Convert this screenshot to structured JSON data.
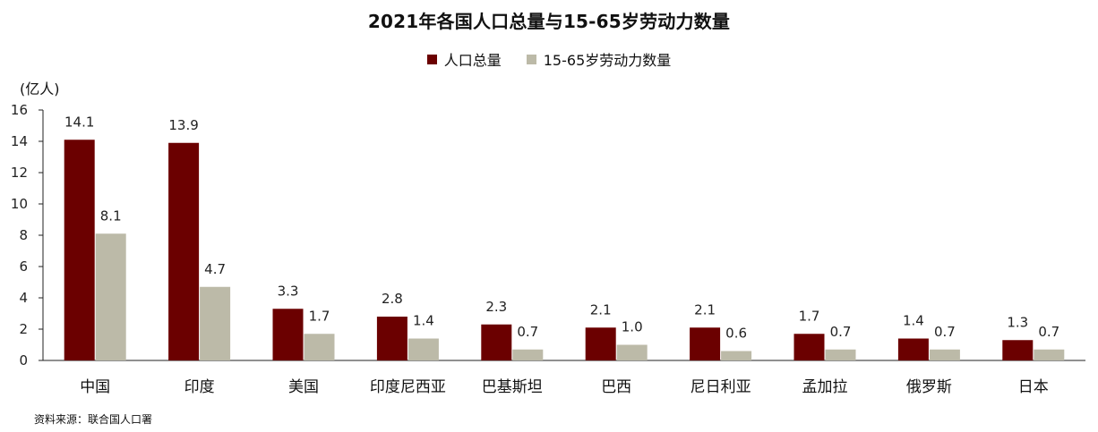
{
  "chart_data": {
    "type": "bar",
    "title": "2021年各国人口总量与15-65岁劳动力数量",
    "unit_label": "(亿人)",
    "categories": [
      "中国",
      "印度",
      "美国",
      "印度尼西亚",
      "巴基斯坦",
      "巴西",
      "尼日利亚",
      "孟加拉",
      "俄罗斯",
      "日本"
    ],
    "series": [
      {
        "name": "人口总量",
        "color": "#6b0000",
        "values": [
          14.1,
          13.9,
          3.3,
          2.8,
          2.3,
          2.1,
          2.1,
          1.7,
          1.4,
          1.3
        ],
        "labels": [
          "14.1",
          "13.9",
          "3.3",
          "2.8",
          "2.3",
          "2.1",
          "2.1",
          "1.7",
          "1.4",
          "1.3"
        ]
      },
      {
        "name": "15-65岁劳动力数量",
        "color": "#bcbaa8",
        "values": [
          8.1,
          4.7,
          1.7,
          1.4,
          0.7,
          1.0,
          0.6,
          0.7,
          0.7,
          0.7
        ],
        "labels": [
          "8.1",
          "4.7",
          "1.7",
          "1.4",
          "0.7",
          "1.0",
          "0.6",
          "0.7",
          "0.7",
          "0.7"
        ]
      }
    ],
    "ylim": [
      0,
      16
    ],
    "yticks": [
      0,
      2,
      4,
      6,
      8,
      10,
      12,
      14,
      16
    ],
    "legend_position": "top-center",
    "grid": false
  },
  "source_note": "资料来源：联合国人口署"
}
